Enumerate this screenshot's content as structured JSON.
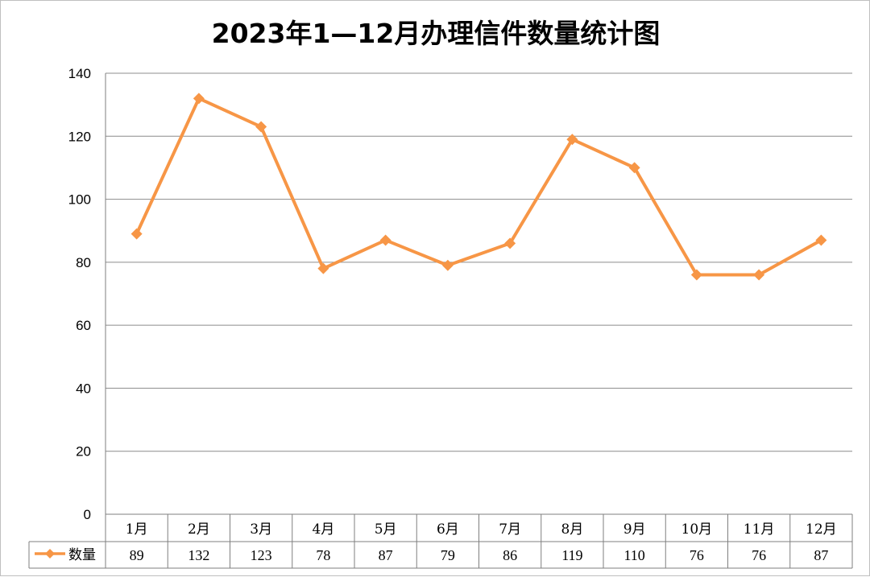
{
  "chart_data": {
    "type": "line",
    "title": "2023年1—12月办理信件数量统计图",
    "categories": [
      "1月",
      "2月",
      "3月",
      "4月",
      "5月",
      "6月",
      "7月",
      "8月",
      "9月",
      "10月",
      "11月",
      "12月"
    ],
    "series": [
      {
        "name": "数量",
        "values": [
          89,
          132,
          123,
          78,
          87,
          79,
          86,
          119,
          110,
          76,
          76,
          87
        ]
      }
    ],
    "ylim": [
      0,
      140
    ],
    "yticks": [
      0,
      20,
      40,
      60,
      80,
      100,
      120,
      140
    ],
    "grid": true,
    "legend": "data-table",
    "colors": {
      "series": "#F79646",
      "grid": "#8c8c8c",
      "table": "#7f7f7f"
    }
  }
}
